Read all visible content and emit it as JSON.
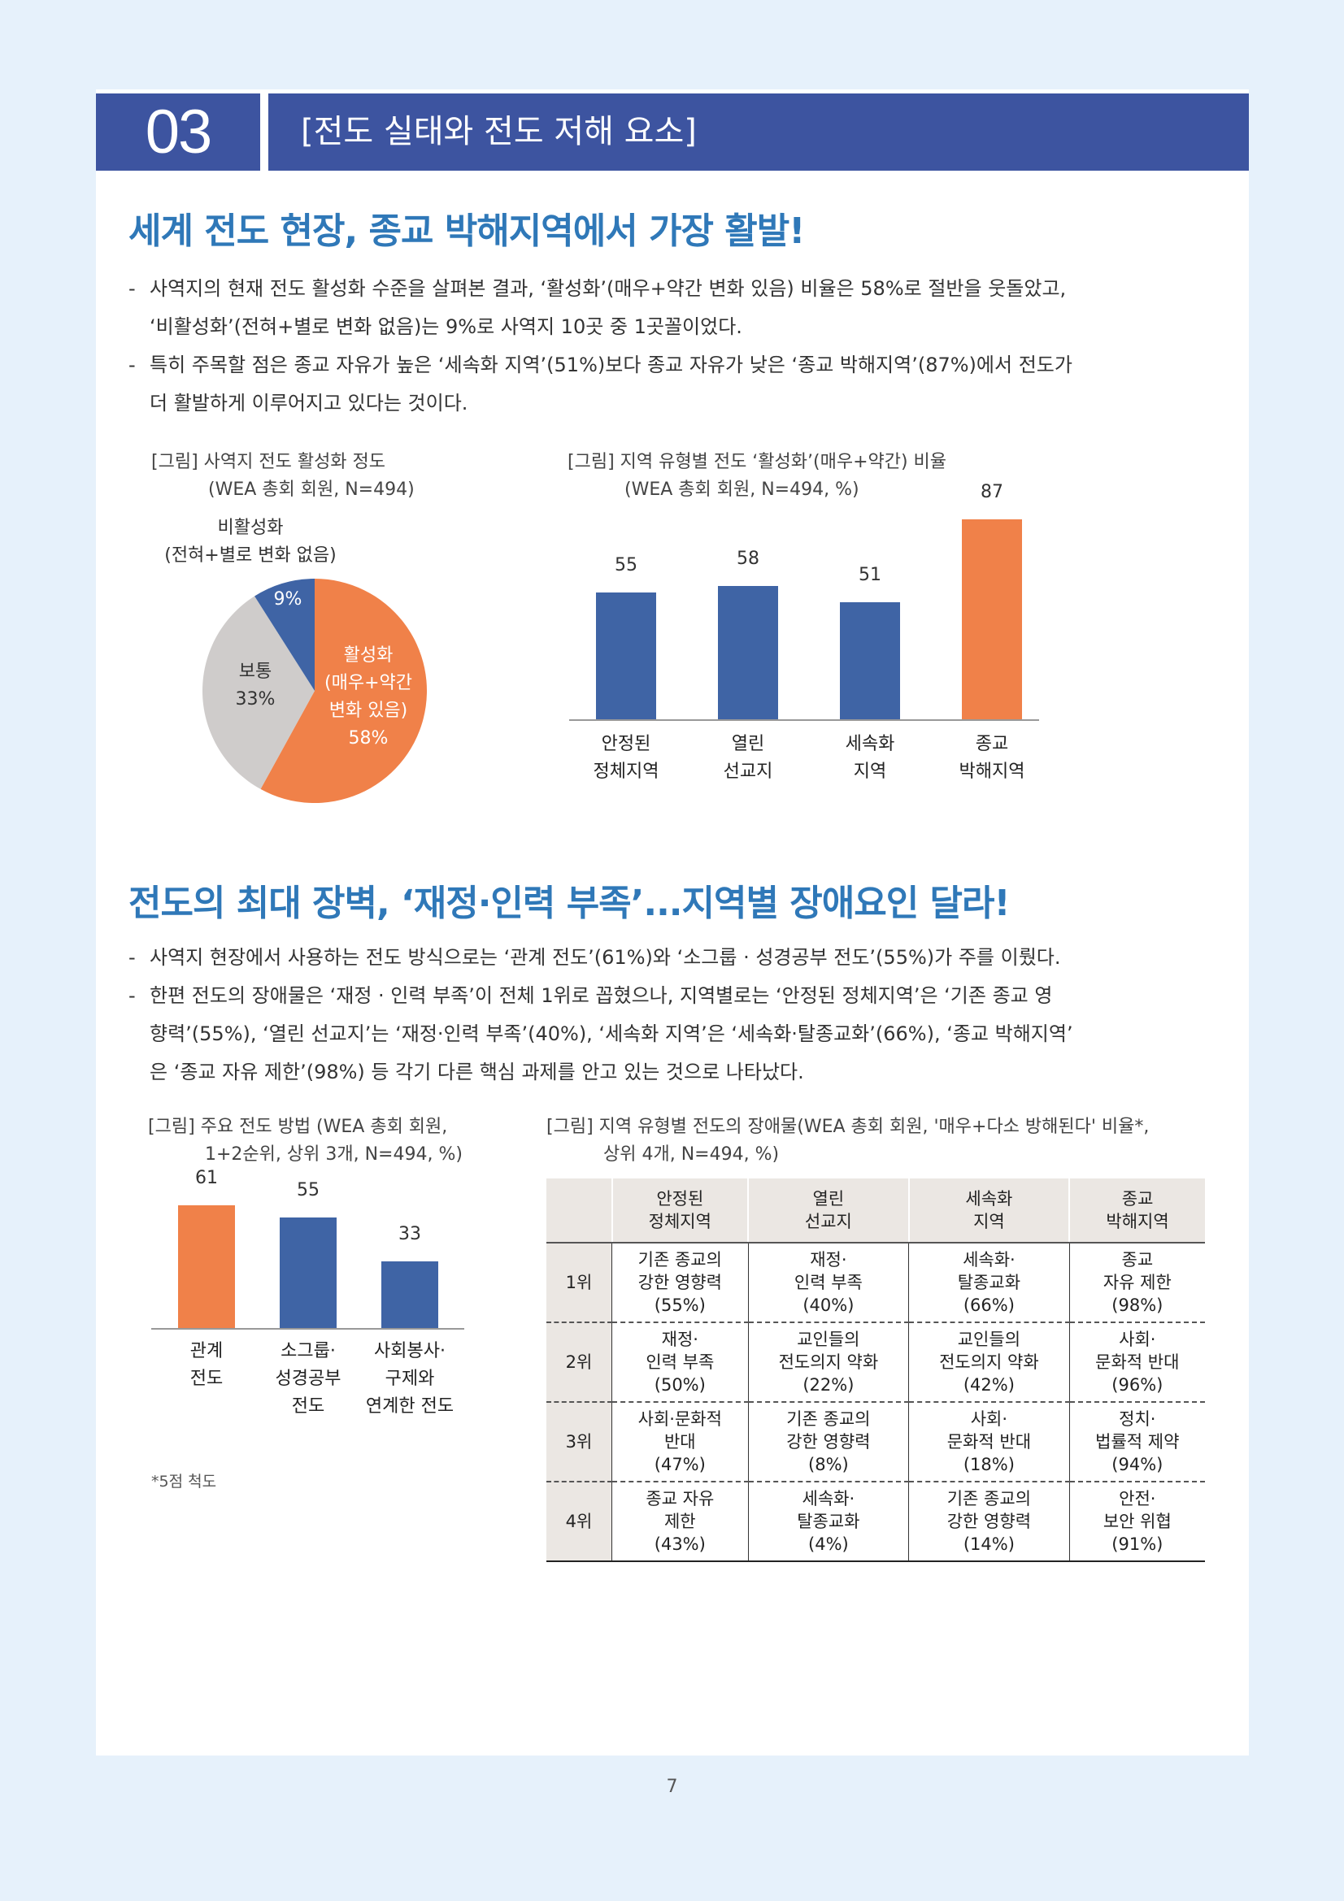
{
  "header": {
    "section_number": "03",
    "section_title": "[전도 실태와 전도 저해 요소]"
  },
  "section1": {
    "heading": "세계 전도 현장, 종교 박해지역에서 가장 활발!",
    "bullets": [
      [
        "사역지의 현재 전도 활성화 수준을 살펴본 결과, ‘활성화’(매우+약간 변화 있음) 비율은 58%로 절반을 웃돌았고,",
        "‘비활성화’(전혀+별로 변화 없음)는 9%로 사역지 10곳 중 1곳꼴이었다."
      ],
      [
        "특히 주목할 점은 종교 자유가 높은 ‘세속화 지역’(51%)보다 종교 자유가 낮은 ‘종교 박해지역’(87%)에서 전도가",
        "더 활발하게 이루어지고 있다는 것이다."
      ]
    ]
  },
  "fig_pie": {
    "caption_line1": "[그림] 사역지 전도 활성화 정도",
    "caption_line2": "(WEA 총회 회원, N=494)",
    "inactive_label_line1": "비활성화",
    "inactive_label_line2": "(전혀+별로 변화 없음)",
    "slice_labels": {
      "inactive_pct": "9%",
      "normal_name": "보통",
      "normal_pct": "33%",
      "active_line1": "활성화",
      "active_line2": "(매우+약간",
      "active_line3": "변화 있음)",
      "active_pct": "58%"
    },
    "colors": {
      "active": "#f08149",
      "normal": "#cfcccb",
      "inactive": "#3f64a5"
    }
  },
  "fig_region_bar": {
    "caption_line1": "[그림] 지역 유형별 전도 ‘활성화’(매우+약간) 비율",
    "caption_line2": "(WEA 총회 회원, N=494, %)",
    "categories": [
      [
        "안정된",
        "정체지역"
      ],
      [
        "열린",
        "선교지"
      ],
      [
        "세속화",
        "지역"
      ],
      [
        "종교",
        "박해지역"
      ]
    ],
    "value_labels": [
      "55",
      "58",
      "51",
      "87"
    ]
  },
  "section2": {
    "heading": "전도의 최대 장벽, ‘재정·인력 부족’...지역별 장애요인 달라!",
    "bullets": [
      [
        "사역지 현장에서 사용하는 전도 방식으로는 ‘관계 전도’(61%)와 ‘소그룹 · 성경공부 전도’(55%)가 주를 이뤘다."
      ],
      [
        "한편 전도의 장애물은 ‘재정 · 인력 부족’이 전체 1위로 꼽혔으나, 지역별로는 ‘안정된 정체지역’은 ‘기존 종교 영",
        "향력’(55%), ‘열린 선교지’는 ‘재정·인력 부족’(40%), ‘세속화 지역’은 ‘세속화·탈종교화’(66%), ‘종교 박해지역’",
        "은 ‘종교 자유 제한’(98%) 등 각기 다른 핵심 과제를 안고 있는 것으로 나타났다."
      ]
    ]
  },
  "fig_method_bar": {
    "caption_line1": "[그림] 주요 전도 방법 (WEA 총회 회원,",
    "caption_line2": "1+2순위, 상위 3개, N=494, %)",
    "categories": [
      [
        "관계",
        "전도"
      ],
      [
        "소그룹·",
        "성경공부",
        "전도"
      ],
      [
        "사회봉사·",
        "구제와",
        "연계한 전도"
      ]
    ],
    "value_labels": [
      "61",
      "55",
      "33"
    ]
  },
  "chart_data": [
    {
      "type": "pie",
      "title": "[그림] 사역지 전도 활성화 정도",
      "subtitle": "(WEA 총회 회원, N=494)",
      "labels": [
        "활성화 (매우+약간 변화 있음)",
        "보통",
        "비활성화 (전혀+별로 변화 없음)"
      ],
      "values": [
        58,
        33,
        9
      ],
      "colors": [
        "#f08149",
        "#cfcccb",
        "#3f64a5"
      ]
    },
    {
      "type": "bar",
      "title": "[그림] 지역 유형별 전도 ‘활성화’(매우+약간) 비율",
      "subtitle": "(WEA 총회 회원, N=494, %)",
      "categories": [
        "안정된 정체지역",
        "열린 선교지",
        "세속화 지역",
        "종교 박해지역"
      ],
      "values": [
        55,
        58,
        51,
        87
      ],
      "colors": [
        "#3f64a5",
        "#3f64a5",
        "#3f64a5",
        "#f08149"
      ],
      "ylim": [
        0,
        100
      ]
    },
    {
      "type": "bar",
      "title": "[그림] 주요 전도 방법 (WEA 총회 회원, 1+2순위, 상위 3개, N=494, %)",
      "categories": [
        "관계 전도",
        "소그룹·성경공부 전도",
        "사회봉사·구제와 연계한 전도"
      ],
      "values": [
        61,
        55,
        33
      ],
      "colors": [
        "#f08149",
        "#3f64a5",
        "#3f64a5"
      ],
      "ylim": [
        0,
        100
      ]
    }
  ],
  "fig_obstacle_table": {
    "caption_line1": "[그림] 지역 유형별 전도의 장애물(WEA 총회 회원, '매우+다소 방해된다' 비율*,",
    "caption_line2": "상위 4개, N=494, %)",
    "columns": [
      [
        "안정된",
        "정체지역"
      ],
      [
        "열린",
        "선교지"
      ],
      [
        "세속화",
        "지역"
      ],
      [
        "종교",
        "박해지역"
      ]
    ],
    "rows": [
      {
        "rank": "1위",
        "cells": [
          [
            "기존 종교의",
            "강한 영향력",
            "(55%)"
          ],
          [
            "재정·",
            "인력 부족",
            "(40%)"
          ],
          [
            "세속화·",
            "탈종교화",
            "(66%)"
          ],
          [
            "종교",
            "자유 제한",
            "(98%)"
          ]
        ]
      },
      {
        "rank": "2위",
        "cells": [
          [
            "재정·",
            "인력 부족",
            "(50%)"
          ],
          [
            "교인들의",
            "전도의지 약화",
            "(22%)"
          ],
          [
            "교인들의",
            "전도의지 약화",
            "(42%)"
          ],
          [
            "사회·",
            "문화적 반대",
            "(96%)"
          ]
        ]
      },
      {
        "rank": "3위",
        "cells": [
          [
            "사회·문화적",
            "반대",
            "(47%)"
          ],
          [
            "기존 종교의",
            "강한 영향력",
            "(8%)"
          ],
          [
            "사회·",
            "문화적 반대",
            "(18%)"
          ],
          [
            "정치·",
            "법률적 제약",
            "(94%)"
          ]
        ]
      },
      {
        "rank": "4위",
        "cells": [
          [
            "종교 자유",
            "제한",
            "(43%)"
          ],
          [
            "세속화·",
            "탈종교화",
            "(4%)"
          ],
          [
            "기존 종교의",
            "강한 영향력",
            "(14%)"
          ],
          [
            "안전·",
            "보안 위협",
            "(91%)"
          ]
        ]
      }
    ]
  },
  "footnote": "*5점 척도",
  "page_number": "7"
}
